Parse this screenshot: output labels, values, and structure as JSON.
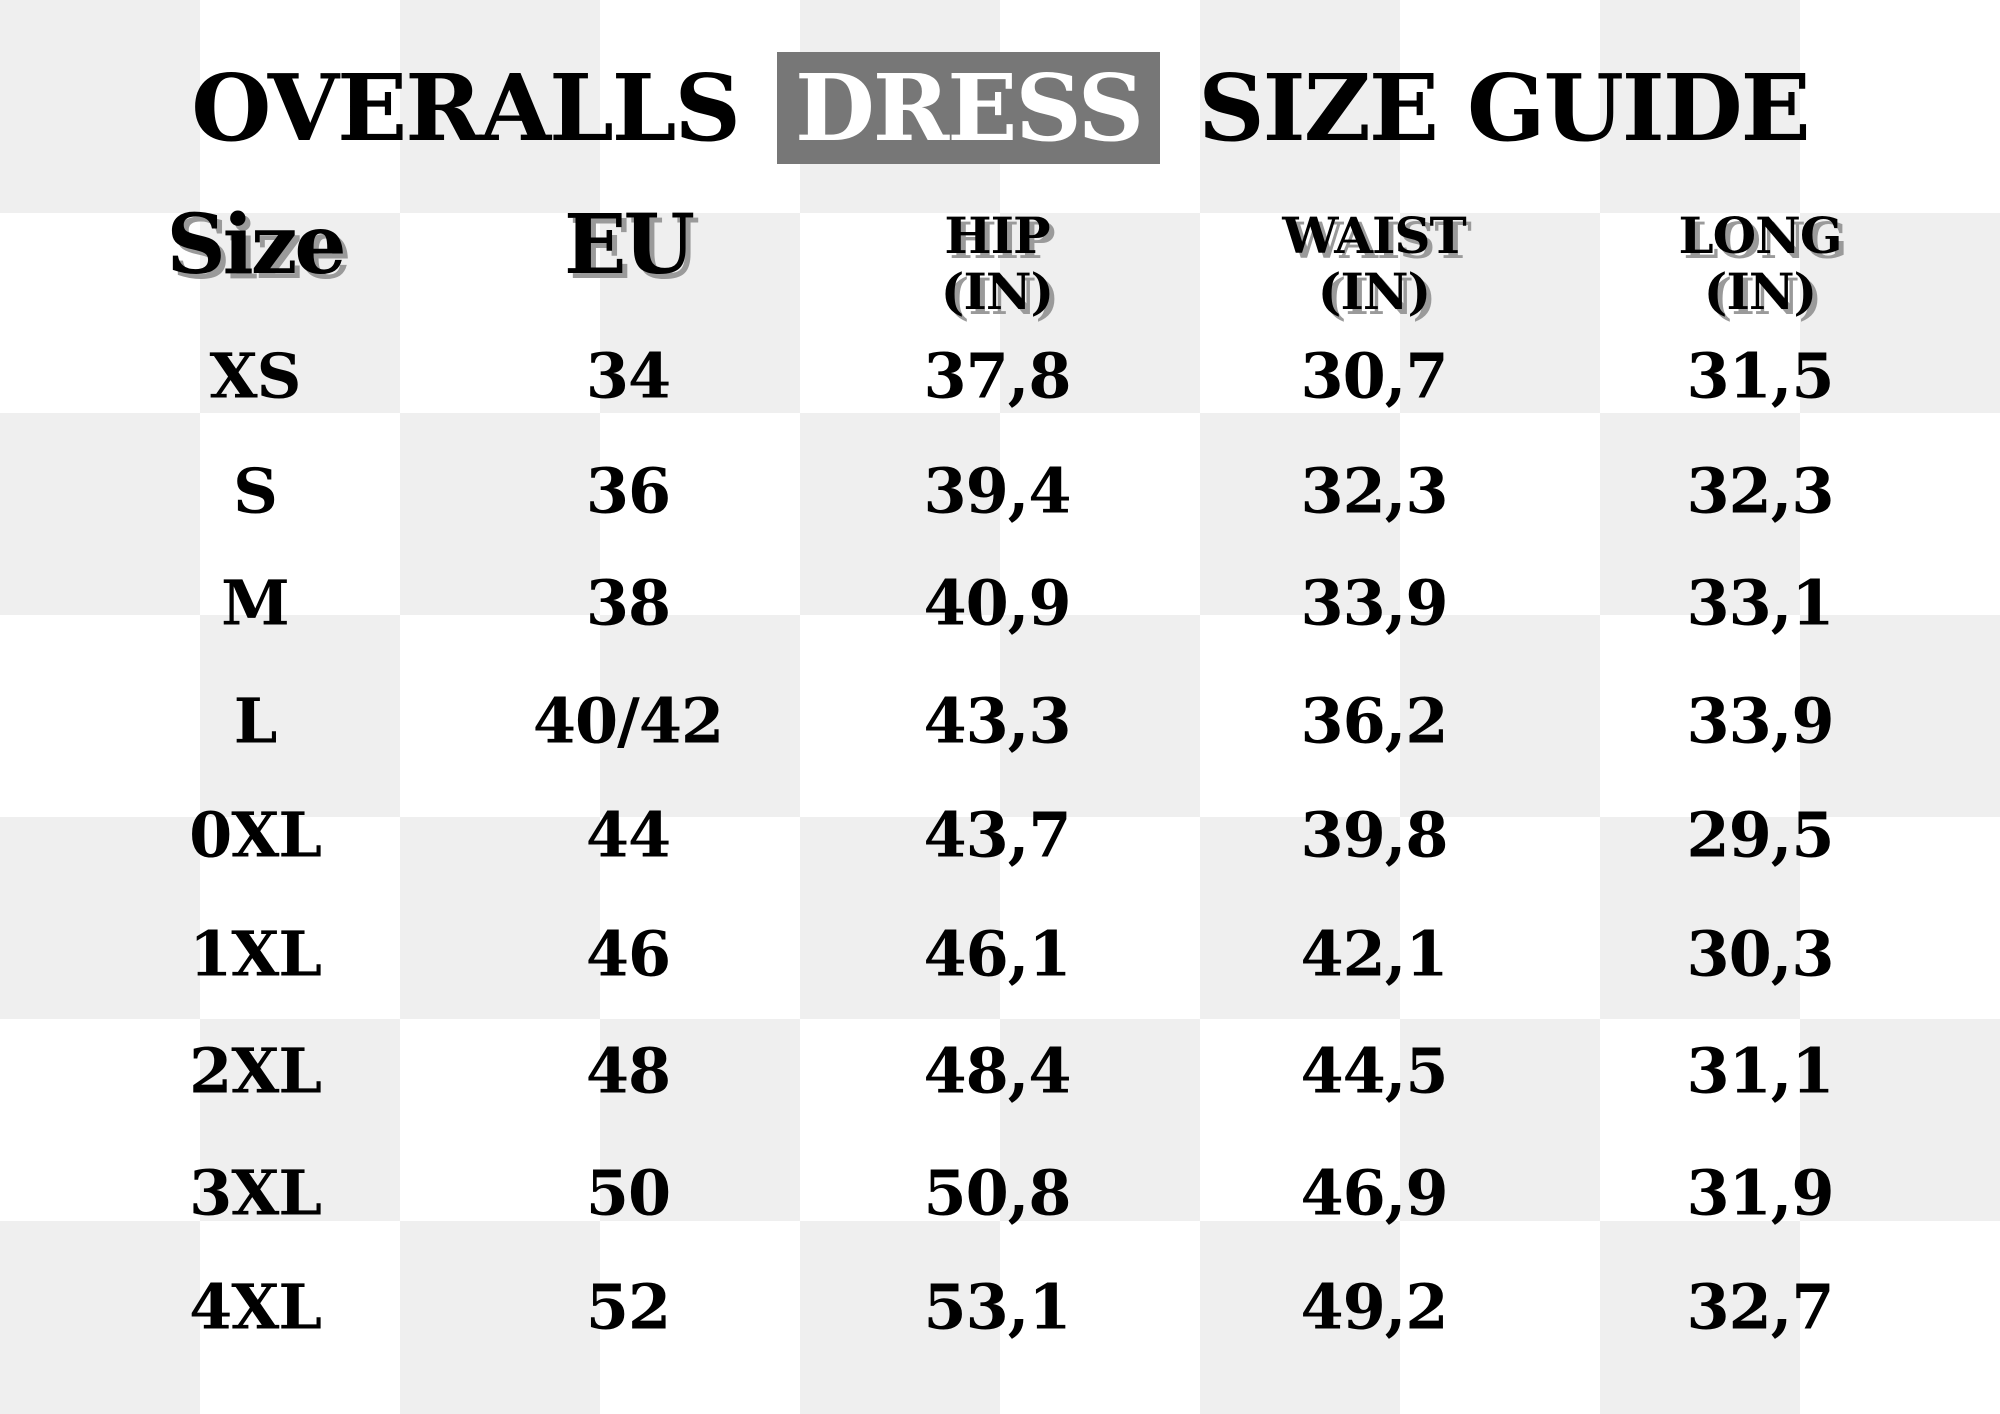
{
  "colors": {
    "checker_light": "#efefef",
    "checker_white": "#ffffff",
    "highlight_box": "#777777",
    "text": "#000000"
  },
  "title": {
    "part1": "OVERALLS",
    "highlight": "DRESS",
    "part2": "SIZE GUIDE"
  },
  "headers": [
    {
      "line1": "Size",
      "line2": ""
    },
    {
      "line1": "EU",
      "line2": ""
    },
    {
      "line1": "HIP",
      "line2": "(IN)"
    },
    {
      "line1": "WAIST",
      "line2": "(IN)"
    },
    {
      "line1": "LONG",
      "line2": "(IN)"
    }
  ],
  "rows": [
    [
      "XS",
      "34",
      "37,8",
      "30,7",
      "31,5"
    ],
    [
      "S",
      "36",
      "39,4",
      "32,3",
      "32,3"
    ],
    [
      "M",
      "38",
      "40,9",
      "33,9",
      "33,1"
    ],
    [
      "L",
      "40/42",
      "43,3",
      "36,2",
      "33,9"
    ],
    [
      "0XL",
      "44",
      "43,7",
      "39,8",
      "29,5"
    ],
    [
      "1XL",
      "46",
      "46,1",
      "42,1",
      "30,3"
    ],
    [
      "2XL",
      "48",
      "48,4",
      "44,5",
      "31,1"
    ],
    [
      "3XL",
      "50",
      "50,8",
      "46,9",
      "31,9"
    ],
    [
      "4XL",
      "52",
      "53,1",
      "49,2",
      "32,7"
    ]
  ]
}
